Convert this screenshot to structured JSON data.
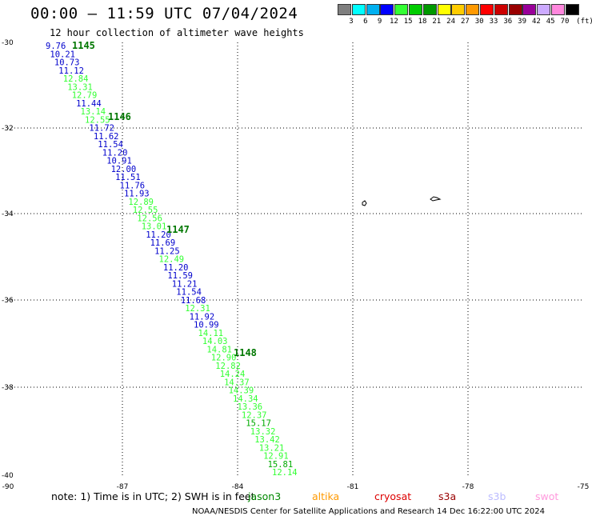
{
  "header": {
    "title": "00:00 – 11:59 UTC 07/04/2024",
    "subtitle": "12 hour collection of altimeter wave heights"
  },
  "scale": {
    "colors": [
      "#7f7f7f",
      "#00ffff",
      "#00b0f0",
      "#0000ff",
      "#33ff33",
      "#00cc00",
      "#009900",
      "#ffff00",
      "#ffcc00",
      "#ff9900",
      "#ff0000",
      "#cc0000",
      "#990000",
      "#990099",
      "#ccaaff",
      "#ff88dd",
      "#000000"
    ],
    "labels": [
      "3",
      "6",
      "9",
      "12",
      "15",
      "18",
      "21",
      "24",
      "27",
      "30",
      "33",
      "36",
      "39",
      "42",
      "45",
      "70"
    ],
    "unit": "(ft)"
  },
  "axes": {
    "lat_labels": [
      "-30",
      "-32",
      "-34",
      "-36",
      "-38",
      "-40"
    ],
    "lon_labels": [
      "-90",
      "-87",
      "-84",
      "-81",
      "-78",
      "-75"
    ]
  },
  "track": {
    "passes": [
      "1145",
      "1146",
      "1147",
      "1148"
    ],
    "readings": [
      {
        "v": "9.76",
        "c": "#0000cc"
      },
      {
        "v": "10.21",
        "c": "#0000cc"
      },
      {
        "v": "10.73",
        "c": "#0000cc"
      },
      {
        "v": "11.12",
        "c": "#0000cc"
      },
      {
        "v": "12.84",
        "c": "#33ff33"
      },
      {
        "v": "13.31",
        "c": "#33ff33"
      },
      {
        "v": "12.79",
        "c": "#33ff33"
      },
      {
        "v": "11.44",
        "c": "#0000cc"
      },
      {
        "v": "13.14",
        "c": "#33ff33"
      },
      {
        "v": "12.55",
        "c": "#33ff33"
      },
      {
        "v": "11.72",
        "c": "#0000cc"
      },
      {
        "v": "11.62",
        "c": "#0000cc"
      },
      {
        "v": "11.54",
        "c": "#0000cc"
      },
      {
        "v": "11.20",
        "c": "#0000cc"
      },
      {
        "v": "10.91",
        "c": "#0000cc"
      },
      {
        "v": "12.00",
        "c": "#0000cc"
      },
      {
        "v": "11.51",
        "c": "#0000cc"
      },
      {
        "v": "11.76",
        "c": "#0000cc"
      },
      {
        "v": "11.93",
        "c": "#0000cc"
      },
      {
        "v": "12.89",
        "c": "#33ff33"
      },
      {
        "v": "12.55",
        "c": "#33ff33"
      },
      {
        "v": "12.56",
        "c": "#33ff33"
      },
      {
        "v": "13.01",
        "c": "#33ff33"
      },
      {
        "v": "11.20",
        "c": "#0000cc"
      },
      {
        "v": "11.69",
        "c": "#0000cc"
      },
      {
        "v": "11.25",
        "c": "#0000cc"
      },
      {
        "v": "12.49",
        "c": "#33ff33"
      },
      {
        "v": "11.20",
        "c": "#0000cc"
      },
      {
        "v": "11.59",
        "c": "#0000cc"
      },
      {
        "v": "11.21",
        "c": "#0000cc"
      },
      {
        "v": "11.54",
        "c": "#0000cc"
      },
      {
        "v": "11.68",
        "c": "#0000cc"
      },
      {
        "v": "12.31",
        "c": "#33ff33"
      },
      {
        "v": "11.92",
        "c": "#0000cc"
      },
      {
        "v": "10.99",
        "c": "#0000cc"
      },
      {
        "v": "14.11",
        "c": "#33ff33"
      },
      {
        "v": "14.03",
        "c": "#33ff33"
      },
      {
        "v": "14.81",
        "c": "#33ff33"
      },
      {
        "v": "12.90",
        "c": "#33ff33"
      },
      {
        "v": "12.82",
        "c": "#33ff33"
      },
      {
        "v": "14.24",
        "c": "#33ff33"
      },
      {
        "v": "14.37",
        "c": "#33ff33"
      },
      {
        "v": "14.39",
        "c": "#33ff33"
      },
      {
        "v": "14.34",
        "c": "#33ff33"
      },
      {
        "v": "13.36",
        "c": "#33ff33"
      },
      {
        "v": "12.37",
        "c": "#33ff33"
      },
      {
        "v": "15.17",
        "c": "#00aa00"
      },
      {
        "v": "13.32",
        "c": "#33ff33"
      },
      {
        "v": "13.42",
        "c": "#33ff33"
      },
      {
        "v": "13.21",
        "c": "#33ff33"
      },
      {
        "v": "12.91",
        "c": "#33ff33"
      },
      {
        "v": "15.81",
        "c": "#00aa00"
      },
      {
        "v": "12.14",
        "c": "#33ff33"
      }
    ]
  },
  "footer": {
    "note": "note: 1) Time is in UTC; 2) SWH is in feet",
    "satellites": [
      {
        "name": "jason3",
        "color": "#008800"
      },
      {
        "name": "altika",
        "color": "#ff9900"
      },
      {
        "name": "cryosat",
        "color": "#dd0000"
      },
      {
        "name": "s3a",
        "color": "#990000"
      },
      {
        "name": "s3b",
        "color": "#bbbbff"
      },
      {
        "name": "swot",
        "color": "#ff99dd"
      }
    ],
    "credit": "NOAA/NESDIS Center for Satellite Applications and Research    14 Dec 16:22:00 UTC 2024"
  }
}
